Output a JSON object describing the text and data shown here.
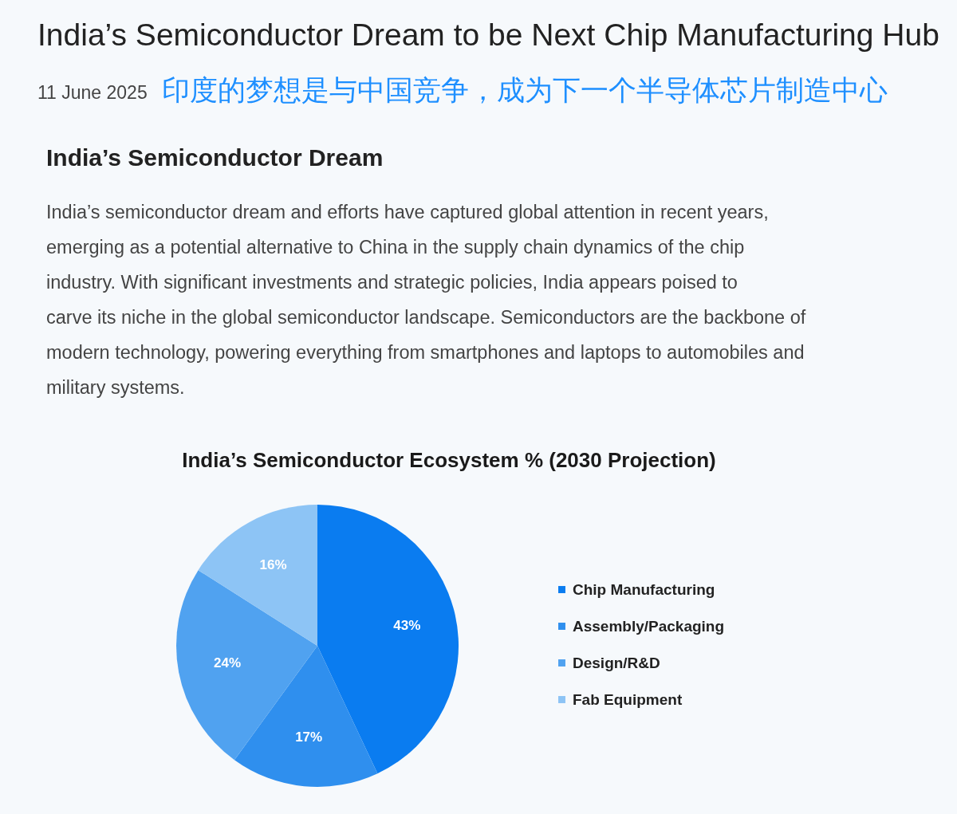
{
  "chart_data": {
    "type": "pie",
    "title": "India’s Semiconductor Ecosystem % (2030 Projection)",
    "categories": [
      "Chip Manufacturing",
      "Assembly/Packaging",
      "Design/R&D",
      "Fab Equipment"
    ],
    "values": [
      43,
      17,
      24,
      16
    ],
    "colors": [
      "#0a7cf0",
      "#2f8fee",
      "#50a2f0",
      "#8dc4f5"
    ],
    "value_labels": [
      "43%",
      "17%",
      "24%",
      "16%"
    ],
    "legend": "right",
    "annotations": [
      "India’s Semiconductor Dream to be Next Chip Manufacturing Hub",
      "11 June 2025",
      "印度的梦想是与中国竞争，成为下一个半导体芯片制造中心",
      "India’s Semiconductor Dream",
      "India’s semiconductor dream and efforts have captured global attention in recent years, emerging as a potential alternative to China in the supply chain dynamics of the chip industry. With significant investments and strategic policies, India appears poised to carve its niche in the global semiconductor landscape. Semiconductors are the backbone of modern technology, powering everything from smartphones and laptops to automobiles and military systems."
    ]
  }
}
